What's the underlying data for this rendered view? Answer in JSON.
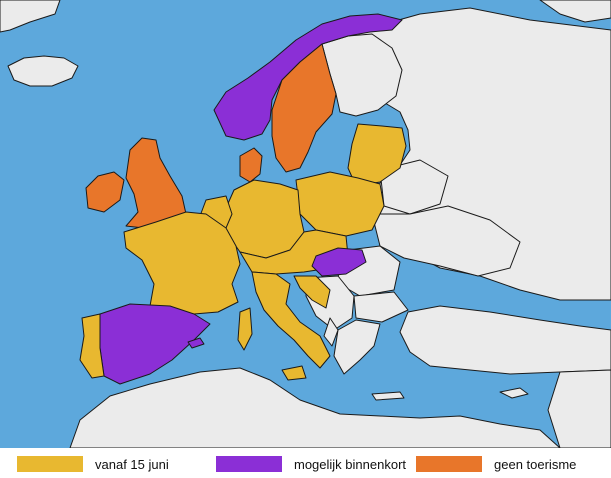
{
  "colors": {
    "sea": "#5da8dc",
    "outside": "#ebebeb",
    "vanaf_15_juni": "#e8b830",
    "mogelijk_binnenkort": "#8b2fd6",
    "geen_toerisme": "#e8762a"
  },
  "legend": [
    {
      "label": "vanaf 15 juni",
      "color": "#e8b830"
    },
    {
      "label": "mogelijk binnenkort",
      "color": "#8b2fd6"
    },
    {
      "label": "geen toerisme",
      "color": "#e8762a"
    }
  ]
}
